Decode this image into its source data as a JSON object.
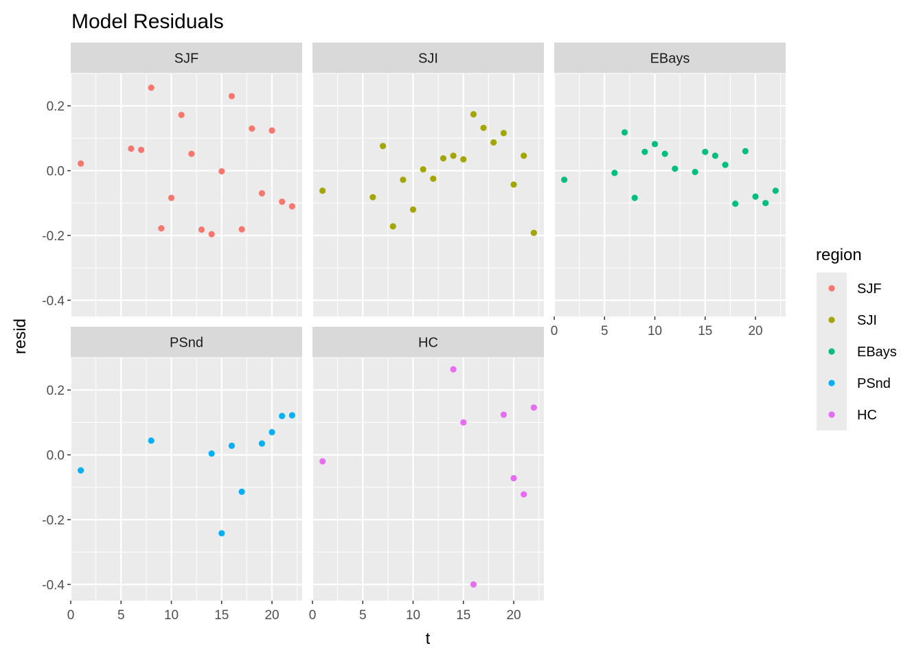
{
  "chart_data": {
    "type": "scatter",
    "title": "Model Residuals",
    "xlabel": "t",
    "ylabel": "resid",
    "xlim": [
      0,
      23
    ],
    "ylim": [
      -0.45,
      0.3
    ],
    "x_ticks": [
      0,
      5,
      10,
      15,
      20
    ],
    "x_tick_labels": [
      "0",
      "5",
      "10",
      "15",
      "20"
    ],
    "y_ticks": [
      -0.4,
      -0.2,
      0.0,
      0.2
    ],
    "y_tick_labels": [
      "-0.4",
      "-0.2",
      "0.0",
      "0.2"
    ],
    "grid": true,
    "legend": {
      "title": "region",
      "placement": "right"
    },
    "series": [
      {
        "name": "SJF",
        "color": "#F8766D",
        "points": [
          {
            "x": 1,
            "y": 0.022
          },
          {
            "x": 6,
            "y": 0.068
          },
          {
            "x": 7,
            "y": 0.064
          },
          {
            "x": 8,
            "y": 0.256
          },
          {
            "x": 9,
            "y": -0.178
          },
          {
            "x": 10,
            "y": -0.084
          },
          {
            "x": 11,
            "y": 0.172
          },
          {
            "x": 12,
            "y": 0.052
          },
          {
            "x": 13,
            "y": -0.182
          },
          {
            "x": 14,
            "y": -0.196
          },
          {
            "x": 15,
            "y": -0.002
          },
          {
            "x": 16,
            "y": 0.23
          },
          {
            "x": 17,
            "y": -0.181
          },
          {
            "x": 18,
            "y": 0.13
          },
          {
            "x": 19,
            "y": -0.07
          },
          {
            "x": 20,
            "y": 0.124
          },
          {
            "x": 21,
            "y": -0.096
          },
          {
            "x": 22,
            "y": -0.11
          }
        ]
      },
      {
        "name": "SJI",
        "color": "#A3A500",
        "points": [
          {
            "x": 1,
            "y": -0.062
          },
          {
            "x": 6,
            "y": -0.082
          },
          {
            "x": 7,
            "y": 0.076
          },
          {
            "x": 8,
            "y": -0.172
          },
          {
            "x": 9,
            "y": -0.028
          },
          {
            "x": 10,
            "y": -0.12
          },
          {
            "x": 11,
            "y": 0.004
          },
          {
            "x": 12,
            "y": -0.025
          },
          {
            "x": 13,
            "y": 0.038
          },
          {
            "x": 14,
            "y": 0.046
          },
          {
            "x": 15,
            "y": 0.035
          },
          {
            "x": 16,
            "y": 0.174
          },
          {
            "x": 17,
            "y": 0.132
          },
          {
            "x": 18,
            "y": 0.087
          },
          {
            "x": 19,
            "y": 0.116
          },
          {
            "x": 20,
            "y": -0.043
          },
          {
            "x": 21,
            "y": 0.046
          },
          {
            "x": 22,
            "y": -0.192
          }
        ]
      },
      {
        "name": "EBays",
        "color": "#00BF7D",
        "points": [
          {
            "x": 1,
            "y": -0.028
          },
          {
            "x": 6,
            "y": -0.007
          },
          {
            "x": 7,
            "y": 0.118
          },
          {
            "x": 8,
            "y": -0.084
          },
          {
            "x": 9,
            "y": 0.058
          },
          {
            "x": 10,
            "y": 0.082
          },
          {
            "x": 11,
            "y": 0.052
          },
          {
            "x": 12,
            "y": 0.006
          },
          {
            "x": 14,
            "y": -0.004
          },
          {
            "x": 15,
            "y": 0.058
          },
          {
            "x": 16,
            "y": 0.046
          },
          {
            "x": 17,
            "y": 0.018
          },
          {
            "x": 18,
            "y": -0.102
          },
          {
            "x": 19,
            "y": 0.06
          },
          {
            "x": 20,
            "y": -0.08
          },
          {
            "x": 21,
            "y": -0.1
          },
          {
            "x": 22,
            "y": -0.062
          }
        ]
      },
      {
        "name": "PSnd",
        "color": "#00B0F6",
        "points": [
          {
            "x": 1,
            "y": -0.048
          },
          {
            "x": 8,
            "y": 0.044
          },
          {
            "x": 14,
            "y": 0.004
          },
          {
            "x": 15,
            "y": -0.242
          },
          {
            "x": 16,
            "y": 0.028
          },
          {
            "x": 17,
            "y": -0.114
          },
          {
            "x": 19,
            "y": 0.035
          },
          {
            "x": 20,
            "y": 0.07
          },
          {
            "x": 21,
            "y": 0.12
          },
          {
            "x": 22,
            "y": 0.122
          }
        ]
      },
      {
        "name": "HC",
        "color": "#E76BF3",
        "points": [
          {
            "x": 1,
            "y": -0.02
          },
          {
            "x": 14,
            "y": 0.264
          },
          {
            "x": 15,
            "y": 0.1
          },
          {
            "x": 16,
            "y": -0.4
          },
          {
            "x": 19,
            "y": 0.124
          },
          {
            "x": 20,
            "y": -0.072
          },
          {
            "x": 21,
            "y": -0.122
          },
          {
            "x": 22,
            "y": 0.146
          }
        ]
      }
    ]
  }
}
